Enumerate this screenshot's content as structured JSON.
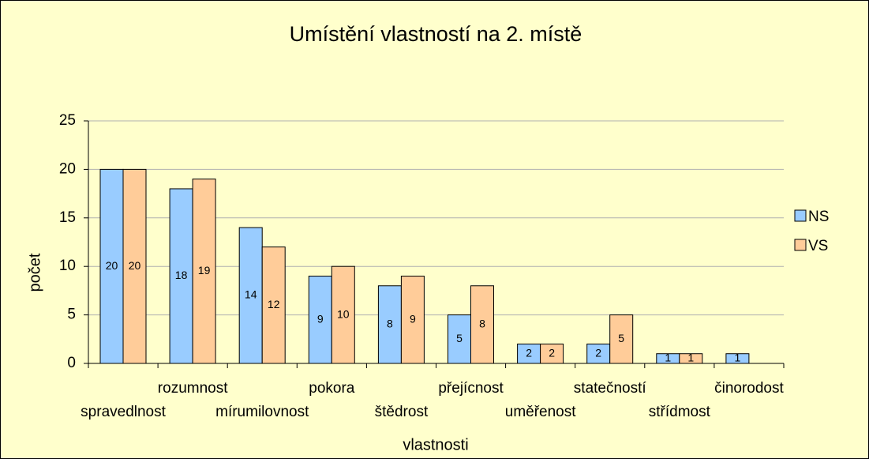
{
  "chart_data": {
    "type": "bar",
    "title": "Umístění  vlastností na 2. místě",
    "x_label": "vlastnosti",
    "y_label": "počet",
    "categories": [
      "spravedlnost",
      "rozumnost",
      "mírumilovnost",
      "pokora",
      "štědrost",
      "přejícnost",
      "uměřenost",
      "statečností",
      "střídmost",
      "činorodost"
    ],
    "series": [
      {
        "name": "NS",
        "color": "#99ccff",
        "values": [
          20,
          18,
          14,
          9,
          8,
          5,
          2,
          2,
          1,
          1
        ]
      },
      {
        "name": "VS",
        "color": "#ffcc99",
        "values": [
          20,
          19,
          12,
          10,
          9,
          8,
          2,
          5,
          1,
          null
        ]
      }
    ],
    "ylim": [
      0,
      25
    ],
    "yticks": [
      0,
      5,
      10,
      15,
      20,
      25
    ],
    "grid": true,
    "legend": "right"
  }
}
